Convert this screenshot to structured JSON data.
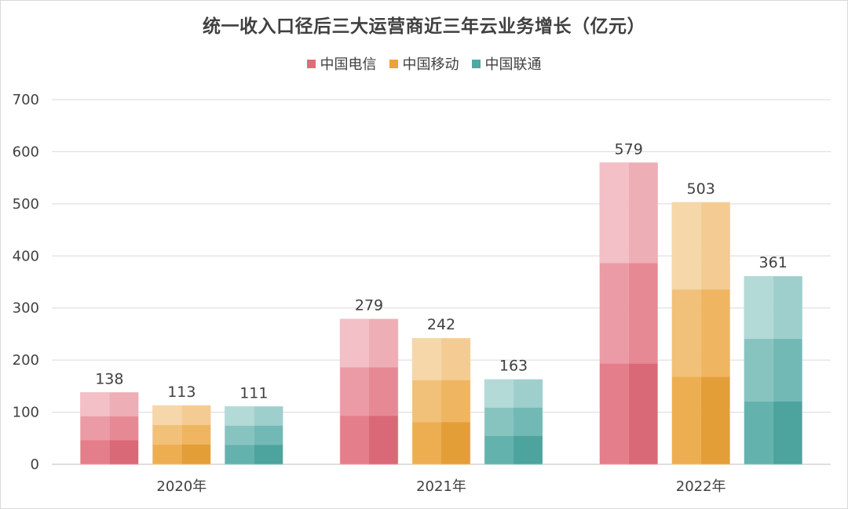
{
  "chart_data": {
    "type": "bar",
    "title": "统一收入口径后三大运营商近三年云业务增长（亿元）",
    "categories": [
      "2020年",
      "2021年",
      "2022年"
    ],
    "series": [
      {
        "name": "中国电信",
        "values": [
          138,
          279,
          579
        ],
        "color": "#e06c7a"
      },
      {
        "name": "中国移动",
        "values": [
          113,
          242,
          503
        ],
        "color": "#eba33a"
      },
      {
        "name": "中国联通",
        "values": [
          111,
          163,
          361
        ],
        "color": "#4fa8a2"
      }
    ],
    "ylim": [
      0,
      700
    ],
    "yticks": [
      "0",
      "100",
      "200",
      "300",
      "400",
      "500",
      "600",
      "700"
    ],
    "grid": true,
    "legend_position": "top"
  }
}
